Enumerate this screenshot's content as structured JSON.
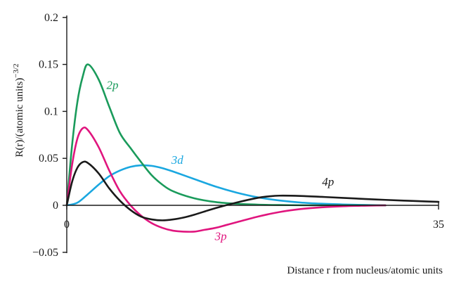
{
  "chart_data": {
    "type": "line",
    "title": "",
    "xlabel": "Distance r from nucleus/atomic units",
    "ylabel": "R(r)/(atomic units)−3/2",
    "ylabel_parts": {
      "main": "R(r)/(atomic units)",
      "exponent": "−3/2"
    },
    "xlim": [
      0,
      35
    ],
    "ylim": [
      -0.05,
      0.2
    ],
    "x_ticks": [
      0,
      35
    ],
    "x_tick_labels": [
      "0",
      "35"
    ],
    "y_ticks": [
      -0.05,
      0,
      0.05,
      0.1,
      0.15,
      0.2
    ],
    "y_tick_labels": [
      "−0.05",
      "0",
      "0.05",
      "0.1",
      "0.15",
      "0.2"
    ],
    "grid": false,
    "legend": "none (series labelled inline)",
    "series": [
      {
        "name": "2p",
        "color": "#1a9b5b",
        "x": [
          0,
          0.5,
          1,
          1.5,
          2,
          3,
          4,
          5,
          6,
          7,
          8,
          9,
          10,
          12,
          14,
          16,
          18,
          20,
          22,
          24,
          26,
          28,
          30
        ],
        "y": [
          0,
          0.064,
          0.11,
          0.137,
          0.15,
          0.134,
          0.105,
          0.077,
          0.061,
          0.046,
          0.032,
          0.022,
          0.015,
          0.0075,
          0.0035,
          0.0016,
          0.0007,
          0.0003,
          0.0001,
          0,
          0,
          0,
          0
        ]
      },
      {
        "name": "3p",
        "color": "#e0157e",
        "x": [
          0,
          0.5,
          1,
          1.5,
          2,
          3,
          4,
          5,
          6,
          7,
          8,
          9,
          10,
          11,
          12,
          13,
          14,
          15,
          16,
          18,
          20,
          22,
          24,
          26,
          28,
          30
        ],
        "y": [
          0,
          0.043,
          0.071,
          0.082,
          0.08,
          0.062,
          0.037,
          0.015,
          0.0,
          -0.011,
          -0.019,
          -0.024,
          -0.027,
          -0.028,
          -0.028,
          -0.026,
          -0.024,
          -0.021,
          -0.018,
          -0.012,
          -0.0072,
          -0.004,
          -0.0021,
          -0.001,
          -0.0004,
          0
        ]
      },
      {
        "name": "3d",
        "color": "#1aa7e0",
        "x": [
          0,
          1,
          2,
          3,
          4,
          5,
          6,
          7,
          8,
          9,
          10,
          12,
          14,
          16,
          18,
          20,
          22,
          24,
          26,
          28,
          30
        ],
        "y": [
          0,
          0.0028,
          0.012,
          0.022,
          0.031,
          0.037,
          0.041,
          0.0426,
          0.042,
          0.0396,
          0.036,
          0.028,
          0.02,
          0.0135,
          0.0085,
          0.0052,
          0.003,
          0.0017,
          0.0009,
          0.0004,
          0
        ]
      },
      {
        "name": "4p",
        "color": "#1a1a1a",
        "x": [
          0,
          0.5,
          1,
          1.5,
          2,
          3,
          4,
          5,
          6,
          7,
          8,
          9,
          10,
          11,
          12,
          14,
          16,
          18,
          19,
          20,
          22,
          24,
          26,
          28,
          30,
          32,
          34,
          35
        ],
        "y": [
          0,
          0.025,
          0.04,
          0.046,
          0.045,
          0.034,
          0.018,
          0.005,
          -0.005,
          -0.012,
          -0.015,
          -0.016,
          -0.015,
          -0.013,
          -0.01,
          -0.003,
          0.003,
          0.008,
          0.0095,
          0.0103,
          0.01,
          0.009,
          0.0079,
          0.0068,
          0.0058,
          0.0049,
          0.0041,
          0.0037
        ]
      }
    ],
    "series_labels": [
      {
        "text": "2p",
        "x": 4.3,
        "y": 0.124
      },
      {
        "text": "3p",
        "x": 14.5,
        "y": -0.037
      },
      {
        "text": "3d",
        "x": 10.4,
        "y": 0.044
      },
      {
        "text": "4p",
        "x": 24.6,
        "y": 0.021
      }
    ]
  }
}
